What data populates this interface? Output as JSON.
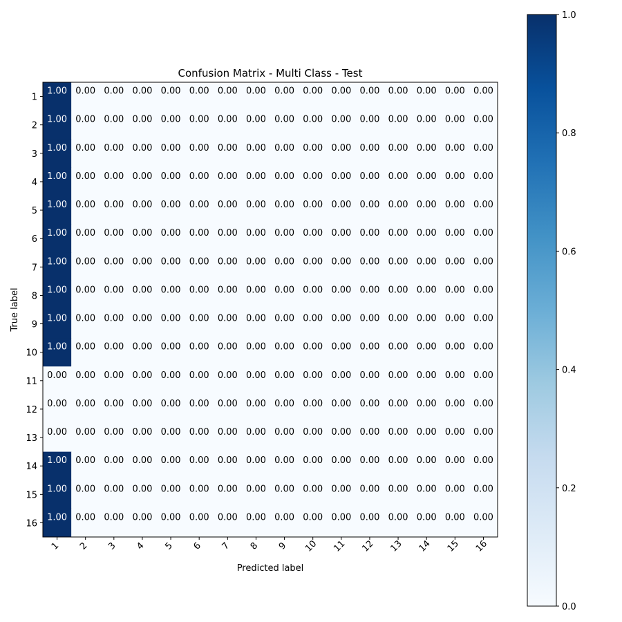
{
  "chart_data": {
    "type": "heatmap",
    "title": "Confusion Matrix - Multi Class -  Test",
    "xlabel": "Predicted label",
    "ylabel": "True label",
    "x_categories": [
      "1",
      "2",
      "3",
      "4",
      "5",
      "6",
      "7",
      "8",
      "9",
      "10",
      "11",
      "12",
      "13",
      "14",
      "15",
      "16"
    ],
    "y_categories": [
      "1",
      "2",
      "3",
      "4",
      "5",
      "6",
      "7",
      "8",
      "9",
      "10",
      "11",
      "12",
      "13",
      "14",
      "15",
      "16"
    ],
    "values": [
      [
        1,
        0,
        0,
        0,
        0,
        0,
        0,
        0,
        0,
        0,
        0,
        0,
        0,
        0,
        0,
        0
      ],
      [
        1,
        0,
        0,
        0,
        0,
        0,
        0,
        0,
        0,
        0,
        0,
        0,
        0,
        0,
        0,
        0
      ],
      [
        1,
        0,
        0,
        0,
        0,
        0,
        0,
        0,
        0,
        0,
        0,
        0,
        0,
        0,
        0,
        0
      ],
      [
        1,
        0,
        0,
        0,
        0,
        0,
        0,
        0,
        0,
        0,
        0,
        0,
        0,
        0,
        0,
        0
      ],
      [
        1,
        0,
        0,
        0,
        0,
        0,
        0,
        0,
        0,
        0,
        0,
        0,
        0,
        0,
        0,
        0
      ],
      [
        1,
        0,
        0,
        0,
        0,
        0,
        0,
        0,
        0,
        0,
        0,
        0,
        0,
        0,
        0,
        0
      ],
      [
        1,
        0,
        0,
        0,
        0,
        0,
        0,
        0,
        0,
        0,
        0,
        0,
        0,
        0,
        0,
        0
      ],
      [
        1,
        0,
        0,
        0,
        0,
        0,
        0,
        0,
        0,
        0,
        0,
        0,
        0,
        0,
        0,
        0
      ],
      [
        1,
        0,
        0,
        0,
        0,
        0,
        0,
        0,
        0,
        0,
        0,
        0,
        0,
        0,
        0,
        0
      ],
      [
        1,
        0,
        0,
        0,
        0,
        0,
        0,
        0,
        0,
        0,
        0,
        0,
        0,
        0,
        0,
        0
      ],
      [
        0,
        0,
        0,
        0,
        0,
        0,
        0,
        0,
        0,
        0,
        0,
        0,
        0,
        0,
        0,
        0
      ],
      [
        0,
        0,
        0,
        0,
        0,
        0,
        0,
        0,
        0,
        0,
        0,
        0,
        0,
        0,
        0,
        0
      ],
      [
        0,
        0,
        0,
        0,
        0,
        0,
        0,
        0,
        0,
        0,
        0,
        0,
        0,
        0,
        0,
        0
      ],
      [
        1,
        0,
        0,
        0,
        0,
        0,
        0,
        0,
        0,
        0,
        0,
        0,
        0,
        0,
        0,
        0
      ],
      [
        1,
        0,
        0,
        0,
        0,
        0,
        0,
        0,
        0,
        0,
        0,
        0,
        0,
        0,
        0,
        0
      ],
      [
        1,
        0,
        0,
        0,
        0,
        0,
        0,
        0,
        0,
        0,
        0,
        0,
        0,
        0,
        0,
        0
      ]
    ],
    "value_format": "0.00",
    "colormap": "Blues",
    "colors": {
      "low": "#f7fbff",
      "high": "#08306b"
    },
    "colorbar": {
      "range": [
        0,
        1
      ],
      "ticks": [
        "0.0",
        "0.2",
        "0.4",
        "0.6",
        "0.8",
        "1.0"
      ]
    }
  }
}
